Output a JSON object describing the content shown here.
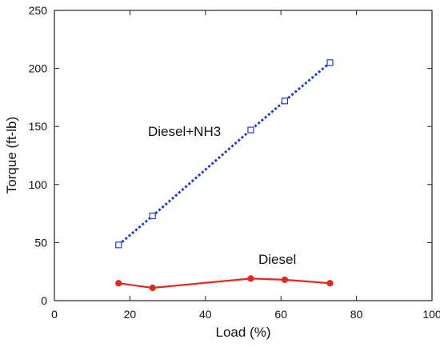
{
  "chart_data": {
    "type": "line",
    "xlabel": "Load (%)",
    "ylabel": "Torque (ft-lb)",
    "xlim": [
      0,
      100
    ],
    "ylim": [
      0,
      250
    ],
    "x_ticks": [
      0,
      20,
      40,
      60,
      80,
      100
    ],
    "y_ticks": [
      0,
      50,
      100,
      150,
      200,
      250
    ],
    "grid": false,
    "series": [
      {
        "name": "Diesel+NH3",
        "color": "#1f3fd0",
        "line_style": "dotted",
        "marker": "open-square",
        "x": [
          17,
          26,
          52,
          61,
          73
        ],
        "y": [
          48,
          73,
          147,
          172,
          205
        ]
      },
      {
        "name": "Diesel",
        "color": "#e8251c",
        "line_style": "solid",
        "marker": "filled-circle",
        "x": [
          17,
          26,
          52,
          61,
          73
        ],
        "y": [
          15,
          11,
          19,
          18,
          15
        ]
      }
    ]
  }
}
